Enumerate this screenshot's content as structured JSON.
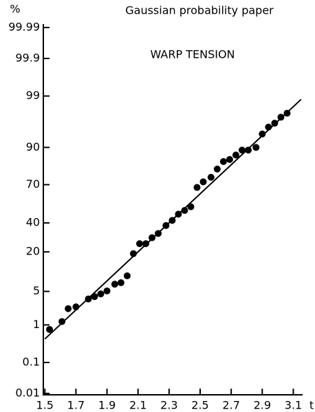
{
  "chart_data": {
    "type": "scatter",
    "title": "Gaussian probability paper",
    "annotation": "WARP TENSION",
    "ylabel": "%",
    "xlabel": "t",
    "yscale": "probability",
    "color": "#000000",
    "x": [
      1.53,
      1.61,
      1.65,
      1.7,
      1.78,
      1.82,
      1.86,
      1.9,
      1.95,
      1.99,
      2.03,
      2.07,
      2.11,
      2.15,
      2.19,
      2.23,
      2.28,
      2.32,
      2.36,
      2.4,
      2.44,
      2.48,
      2.52,
      2.57,
      2.61,
      2.65,
      2.69,
      2.73,
      2.77,
      2.81,
      2.86,
      2.9,
      2.94,
      2.98,
      3.02,
      3.06
    ],
    "values": [
      0.78,
      1.2,
      2.3,
      2.5,
      3.6,
      4.0,
      4.5,
      5.1,
      6.7,
      7.1,
      9.2,
      19,
      25,
      25,
      29,
      32,
      38,
      42,
      47,
      50,
      53,
      68,
      72,
      75,
      80,
      84,
      85,
      87,
      89,
      89,
      90,
      94,
      95.5,
      96.2,
      97.1,
      97.6
    ],
    "fit": {
      "x": [
        1.5,
        3.15
      ],
      "values": [
        0.45,
        98.8
      ]
    },
    "xlim": [
      1.49,
      3.16
    ],
    "xticks": [
      1.5,
      1.7,
      1.9,
      2.1,
      2.3,
      2.5,
      2.7,
      2.9,
      3.1
    ],
    "ylim": [
      0.01,
      99.99
    ],
    "yticks": [
      0.01,
      0.1,
      1,
      5,
      20,
      40,
      70,
      90,
      99,
      99.9,
      99.99
    ]
  }
}
